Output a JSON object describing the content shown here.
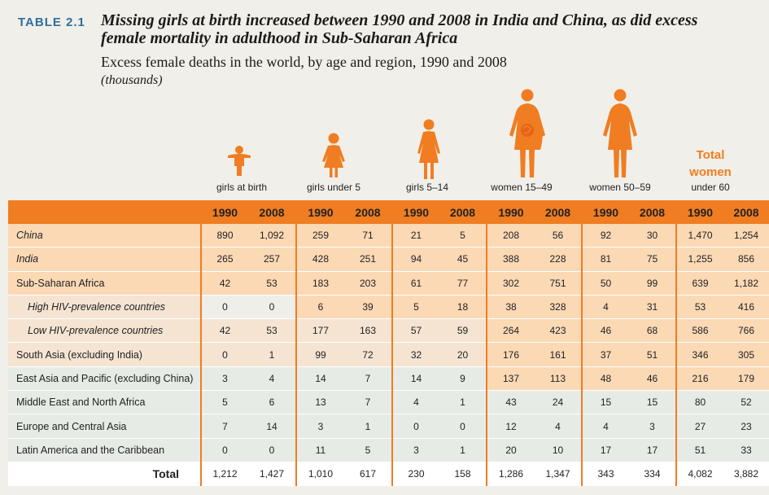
{
  "header": {
    "label": "TABLE 2.1",
    "title": "Missing girls at birth increased between 1990 and 2008 in India and China, as did excess female mortality in adulthood in Sub-Saharan Africa",
    "subtitle": "Excess female deaths in the world, by age and region, 1990 and 2008",
    "units": "(thousands)"
  },
  "columns": [
    {
      "label": "girls at birth",
      "icon": "infant-figure-icon"
    },
    {
      "label": "girls under 5",
      "icon": "toddler-figure-icon"
    },
    {
      "label": "girls 5–14",
      "icon": "girl-figure-icon"
    },
    {
      "label": "women 15–49",
      "icon": "pregnant-woman-figure-icon"
    },
    {
      "label": "women 50–59",
      "icon": "woman-figure-icon"
    }
  ],
  "total_column": {
    "line1": "Total",
    "line2": "women",
    "line3": "under 60"
  },
  "years": [
    "1990",
    "2008"
  ],
  "rows": [
    {
      "name": "China",
      "values": [
        "890",
        "1,092",
        "259",
        "71",
        "21",
        "5",
        "208",
        "56",
        "92",
        "30",
        "1,470",
        "1,254"
      ]
    },
    {
      "name": "India",
      "values": [
        "265",
        "257",
        "428",
        "251",
        "94",
        "45",
        "388",
        "228",
        "81",
        "75",
        "1,255",
        "856"
      ]
    },
    {
      "name": "Sub-Saharan Africa",
      "values": [
        "42",
        "53",
        "183",
        "203",
        "61",
        "77",
        "302",
        "751",
        "50",
        "99",
        "639",
        "1,182"
      ]
    },
    {
      "name": "High HIV-prevalence countries",
      "values": [
        "0",
        "0",
        "6",
        "39",
        "5",
        "18",
        "38",
        "328",
        "4",
        "31",
        "53",
        "416"
      ]
    },
    {
      "name": "Low HIV-prevalence countries",
      "values": [
        "42",
        "53",
        "177",
        "163",
        "57",
        "59",
        "264",
        "423",
        "46",
        "68",
        "586",
        "766"
      ]
    },
    {
      "name": "South Asia (excluding India)",
      "values": [
        "0",
        "1",
        "99",
        "72",
        "32",
        "20",
        "176",
        "161",
        "37",
        "51",
        "346",
        "305"
      ]
    },
    {
      "name": "East Asia and Pacific (excluding China)",
      "values": [
        "3",
        "4",
        "14",
        "7",
        "14",
        "9",
        "137",
        "113",
        "48",
        "46",
        "216",
        "179"
      ]
    },
    {
      "name": "Middle East and North Africa",
      "values": [
        "5",
        "6",
        "13",
        "7",
        "4",
        "1",
        "43",
        "24",
        "15",
        "15",
        "80",
        "52"
      ]
    },
    {
      "name": "Europe and Central Asia",
      "values": [
        "7",
        "14",
        "3",
        "1",
        "0",
        "0",
        "12",
        "4",
        "4",
        "3",
        "27",
        "23"
      ]
    },
    {
      "name": "Latin America and the Caribbean",
      "values": [
        "0",
        "0",
        "11",
        "5",
        "3",
        "1",
        "20",
        "10",
        "17",
        "17",
        "51",
        "33"
      ]
    }
  ],
  "total_row": {
    "name": "Total",
    "values": [
      "1,212",
      "1,427",
      "1,010",
      "617",
      "230",
      "158",
      "1,286",
      "1,347",
      "343",
      "334",
      "4,082",
      "3,882"
    ]
  },
  "colors": {
    "accent": "#f07d21",
    "title_label": "#2e6f9e"
  }
}
